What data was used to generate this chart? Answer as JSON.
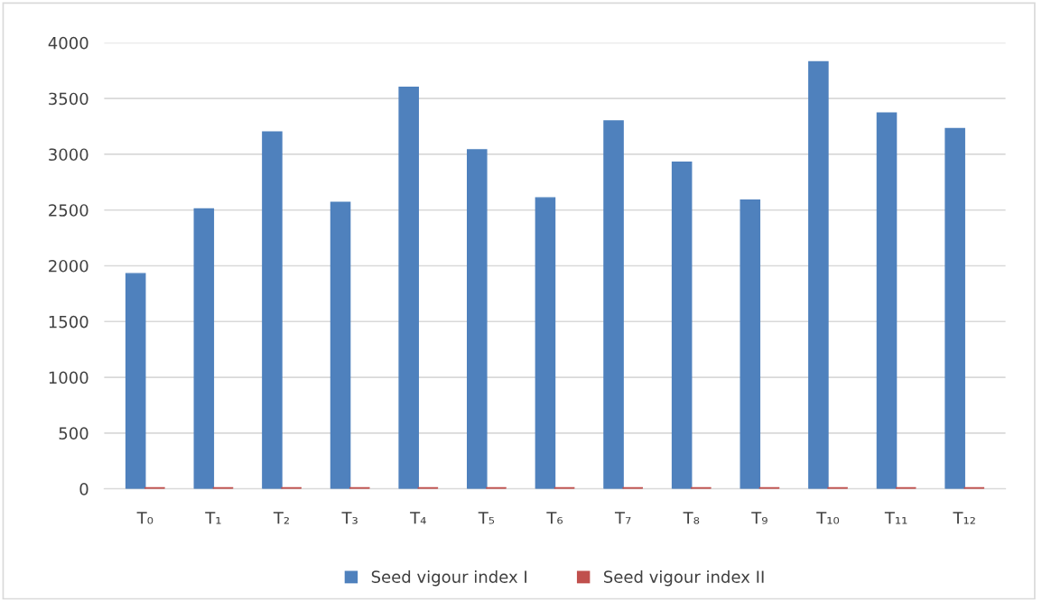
{
  "chart_data": {
    "type": "bar",
    "categories": [
      "T₀",
      "T₁",
      "T₂",
      "T₃",
      "T₄",
      "T₅",
      "T₆",
      "T₇",
      "T₈",
      "T₉",
      "T₁₀",
      "T₁₁",
      "T₁₂"
    ],
    "series": [
      {
        "name": "Seed vigour index I",
        "color": "#4f81bd",
        "values": [
          1930,
          2510,
          3200,
          2570,
          3600,
          3040,
          2610,
          3300,
          2930,
          2590,
          3830,
          3370,
          3230
        ]
      },
      {
        "name": "Seed vigour index II",
        "color": "#c0504d",
        "values": [
          10,
          10,
          10,
          10,
          10,
          10,
          10,
          10,
          10,
          10,
          10,
          10,
          10
        ]
      }
    ],
    "ylim": [
      0,
      4000
    ],
    "yticks": [
      0,
      500,
      1000,
      1500,
      2000,
      2500,
      3000,
      3500,
      4000
    ],
    "grid": "y",
    "legend": "bottom"
  }
}
